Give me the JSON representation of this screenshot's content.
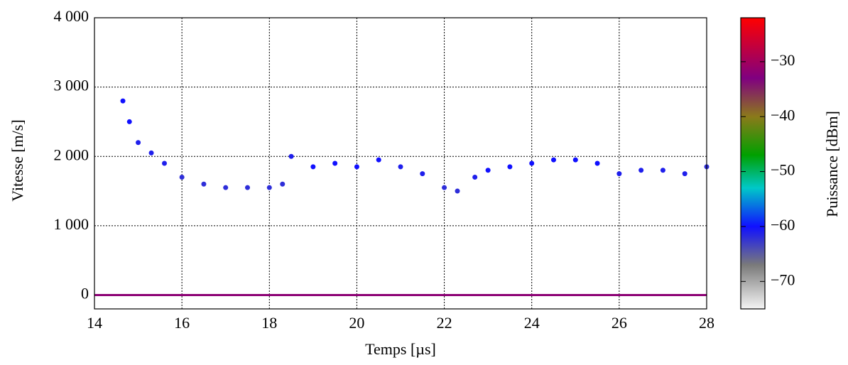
{
  "chart_data": {
    "type": "scatter",
    "xlabel": "Temps [µs]",
    "ylabel": "Vitesse [m/s]",
    "xlim": [
      14,
      28
    ],
    "ylim": [
      -200,
      4000
    ],
    "xticks": [
      14,
      16,
      18,
      20,
      22,
      24,
      26,
      28
    ],
    "yticks": [
      0,
      {
        "value": 1000,
        "label": "1 000"
      },
      {
        "value": 2000,
        "label": "2 000"
      },
      {
        "value": 3000,
        "label": "3 000"
      },
      {
        "value": 4000,
        "label": "4 000"
      }
    ],
    "grid": true,
    "series": [
      {
        "mode": "points",
        "x": [
          14.65,
          14.8,
          15.0,
          15.3,
          15.6,
          16.0,
          16.5,
          17.0,
          17.5,
          18.0,
          18.3,
          18.5,
          19.0,
          19.5,
          20.0,
          20.5,
          21.0,
          21.5,
          22.0,
          22.3,
          22.7,
          23.0,
          23.5,
          24.0,
          24.5,
          25.0,
          25.5,
          26.0,
          26.5,
          27.0,
          27.5,
          28.0
        ],
        "values": [
          2800,
          2500,
          2200,
          2050,
          1900,
          1700,
          1600,
          1550,
          1550,
          1550,
          1600,
          2000,
          1850,
          1900,
          1850,
          1950,
          1850,
          1750,
          1550,
          1500,
          1700,
          1800,
          1850,
          1900,
          1950,
          1950,
          1900,
          1750,
          1800,
          1800,
          1750,
          1850
        ],
        "power": [
          -60,
          -60,
          -61,
          -61,
          -61,
          -62,
          -62,
          -62,
          -62,
          -62,
          -62,
          -61,
          -60,
          -60,
          -60,
          -60,
          -61,
          -61,
          -62,
          -62,
          -61,
          -60,
          -60,
          -60,
          -60,
          -60,
          -60,
          -61,
          -61,
          -61,
          -61,
          -62
        ]
      },
      {
        "mode": "line",
        "x": [
          14,
          28
        ],
        "values": [
          0,
          0
        ],
        "power": [
          -32,
          -32
        ]
      }
    ],
    "colorbar": {
      "label": "Puissance [dBm]",
      "lim": [
        -75,
        -22
      ],
      "ticks": [
        {
          "value": -30,
          "label": "−30"
        },
        {
          "value": -40,
          "label": "−40"
        },
        {
          "value": -50,
          "label": "−50"
        },
        {
          "value": -60,
          "label": "−60"
        },
        {
          "value": -70,
          "label": "−70"
        }
      ],
      "colormap": [
        {
          "value": -75,
          "color": "#f4f4f4"
        },
        {
          "value": -67,
          "color": "#7a7a7a"
        },
        {
          "value": -60,
          "color": "#1010ff"
        },
        {
          "value": -53,
          "color": "#00c8c8"
        },
        {
          "value": -47,
          "color": "#00a000"
        },
        {
          "value": -40,
          "color": "#8b7a1a"
        },
        {
          "value": -33,
          "color": "#800080"
        },
        {
          "value": -22,
          "color": "#ff0000"
        }
      ]
    }
  }
}
